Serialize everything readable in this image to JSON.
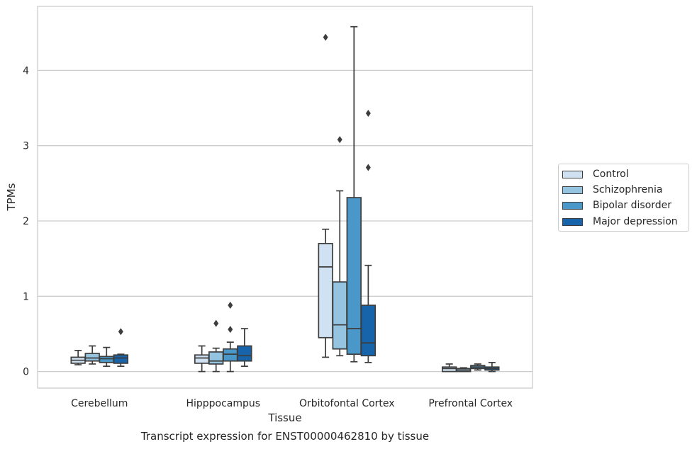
{
  "chart_data": {
    "type": "box",
    "title": "Transcript expression for ENST00000462810 by tissue",
    "xlabel": "Tissue",
    "ylabel": "TPMs",
    "ylim": [
      -0.22,
      4.85
    ],
    "yticks": [
      0,
      1,
      2,
      3,
      4
    ],
    "grid": true,
    "legend_position": "right",
    "categories": [
      "Cerebellum",
      "Hipppocampus",
      "Orbitofontal Cortex",
      "Prefrontal Cortex"
    ],
    "series": [
      {
        "name": "Control",
        "color": "#d0e1f2",
        "boxes": [
          {
            "whislo": 0.09,
            "q1": 0.11,
            "med": 0.15,
            "q3": 0.19,
            "whishi": 0.28,
            "fliers": []
          },
          {
            "whislo": 0.0,
            "q1": 0.11,
            "med": 0.18,
            "q3": 0.22,
            "whishi": 0.34,
            "fliers": []
          },
          {
            "whislo": 0.19,
            "q1": 0.45,
            "med": 1.39,
            "q3": 1.7,
            "whishi": 1.89,
            "fliers": [
              4.44
            ]
          },
          {
            "whislo": 0.0,
            "q1": 0.0,
            "med": 0.04,
            "q3": 0.06,
            "whishi": 0.1,
            "fliers": []
          }
        ]
      },
      {
        "name": "Schizophrenia",
        "color": "#94c4df",
        "boxes": [
          {
            "whislo": 0.1,
            "q1": 0.14,
            "med": 0.18,
            "q3": 0.24,
            "whishi": 0.34,
            "fliers": []
          },
          {
            "whislo": 0.0,
            "q1": 0.1,
            "med": 0.14,
            "q3": 0.26,
            "whishi": 0.31,
            "fliers": [
              0.64
            ]
          },
          {
            "whislo": 0.21,
            "q1": 0.3,
            "med": 0.62,
            "q3": 1.19,
            "whishi": 2.4,
            "fliers": [
              3.08
            ]
          },
          {
            "whislo": 0.0,
            "q1": 0.0,
            "med": 0.02,
            "q3": 0.04,
            "whishi": 0.05,
            "fliers": []
          }
        ]
      },
      {
        "name": "Bipolar disorder",
        "color": "#4a98c9",
        "boxes": [
          {
            "whislo": 0.07,
            "q1": 0.12,
            "med": 0.17,
            "q3": 0.2,
            "whishi": 0.32,
            "fliers": []
          },
          {
            "whislo": 0.0,
            "q1": 0.14,
            "med": 0.23,
            "q3": 0.3,
            "whishi": 0.39,
            "fliers": [
              0.56,
              0.88
            ]
          },
          {
            "whislo": 0.13,
            "q1": 0.23,
            "med": 0.57,
            "q3": 2.31,
            "whishi": 4.58,
            "fliers": []
          },
          {
            "whislo": 0.02,
            "q1": 0.04,
            "med": 0.06,
            "q3": 0.08,
            "whishi": 0.1,
            "fliers": []
          }
        ]
      },
      {
        "name": "Major depression",
        "color": "#1764ab",
        "boxes": [
          {
            "whislo": 0.07,
            "q1": 0.11,
            "med": 0.18,
            "q3": 0.22,
            "whishi": 0.23,
            "fliers": [
              0.53
            ]
          },
          {
            "whislo": 0.07,
            "q1": 0.14,
            "med": 0.21,
            "q3": 0.34,
            "whishi": 0.57,
            "fliers": []
          },
          {
            "whislo": 0.12,
            "q1": 0.21,
            "med": 0.38,
            "q3": 0.88,
            "whishi": 1.41,
            "fliers": [
              2.71,
              3.43
            ]
          },
          {
            "whislo": 0.0,
            "q1": 0.02,
            "med": 0.04,
            "q3": 0.06,
            "whishi": 0.12,
            "fliers": []
          }
        ]
      }
    ]
  }
}
